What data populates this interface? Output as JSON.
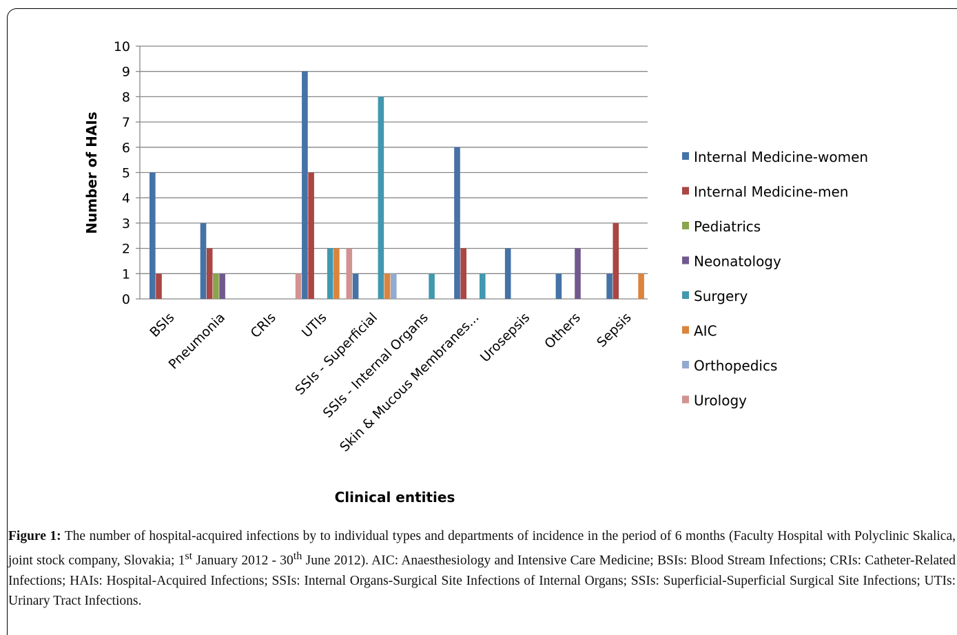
{
  "chart_data": {
    "type": "bar",
    "title": "",
    "xlabel": "Clinical entities",
    "ylabel": "Number of HAIs",
    "ylim": [
      0,
      10
    ],
    "yticks": [
      "0",
      "1",
      "2",
      "3",
      "4",
      "5",
      "6",
      "7",
      "8",
      "9",
      "10"
    ],
    "grid": true,
    "legend_position": "right",
    "categories": [
      "BSIs",
      "Pneumonia",
      "CRIs",
      "UTIs",
      "SSIs - Superficial",
      "SSIs - Internal Organs",
      "Skin & Mucous Membranes...",
      "Urosepsis",
      "Others",
      "Sepsis"
    ],
    "series": [
      {
        "name": "Internal Medicine-women",
        "color": "#4572A7",
        "values": [
          5,
          3,
          0,
          9,
          1,
          0,
          6,
          2,
          1,
          1
        ]
      },
      {
        "name": "Internal Medicine-men",
        "color": "#AA4643",
        "values": [
          1,
          2,
          0,
          5,
          0,
          0,
          2,
          0,
          0,
          3
        ]
      },
      {
        "name": "Pediatrics",
        "color": "#89A54E",
        "values": [
          0,
          1,
          0,
          0,
          0,
          0,
          0,
          0,
          0,
          0
        ]
      },
      {
        "name": "Neonatology",
        "color": "#71588F",
        "values": [
          0,
          1,
          0,
          0,
          0,
          0,
          0,
          0,
          2,
          0
        ]
      },
      {
        "name": "Surgery",
        "color": "#4198AF",
        "values": [
          0,
          0,
          0,
          2,
          8,
          1,
          1,
          0,
          0,
          0
        ]
      },
      {
        "name": "AIC",
        "color": "#DB843D",
        "values": [
          0,
          0,
          0,
          2,
          1,
          0,
          0,
          0,
          0,
          1
        ]
      },
      {
        "name": "Orthopedics",
        "color": "#93A9CF",
        "values": [
          0,
          0,
          0,
          0,
          1,
          0,
          0,
          0,
          0,
          0
        ]
      },
      {
        "name": "Urology",
        "color": "#D19392",
        "values": [
          0,
          0,
          1,
          2,
          0,
          0,
          0,
          0,
          0,
          0
        ]
      }
    ]
  },
  "caption": {
    "lead": "Figure 1:",
    "part1": " The number of hospital-acquired infections by to individual types and departments of incidence in the period of 6 months (Faculty Hospital with Polyclinic Skalica, joint stock company, Slovakia; 1",
    "sup1": "st",
    "part2": " January 2012 - 30",
    "sup2": "th",
    "part3": " June 2012). AIC: Anaesthesiology and Intensive Care Medicine; BSIs: Blood Stream Infections; CRIs: Catheter-Related Infections; HAIs: Hospital-Acquired Infections; SSIs: Internal Organs-Surgical Site Infections of Internal Organs; SSIs: Superficial-Superficial Surgical Site Infections; UTIs: Urinary Tract Infections."
  }
}
